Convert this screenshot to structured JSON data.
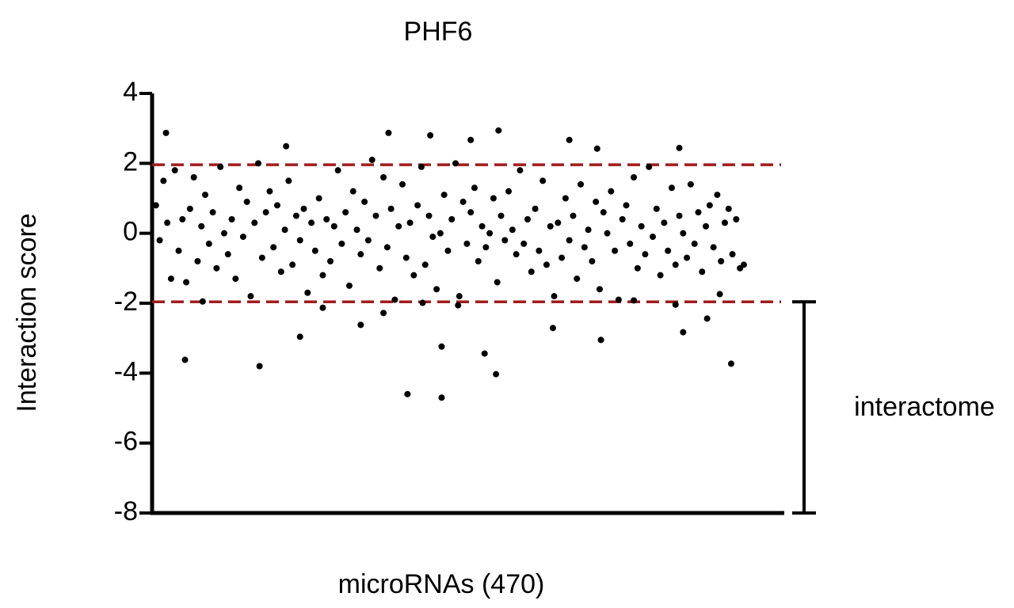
{
  "chart_data": {
    "type": "scatter",
    "title": "PHF6",
    "x_label": "microRNAs (470)",
    "y_label": "Interaction score",
    "color": "#000000",
    "threshold_color": "#a01c1c",
    "xlim": [
      0,
      500
    ],
    "ylim": [
      -8,
      4
    ],
    "yticks": [
      4,
      2,
      0,
      -2,
      -4,
      -6,
      -8
    ],
    "thresholds": [
      1.96,
      -1.96
    ],
    "bracket": {
      "label": "interactome",
      "range": [
        -1.96,
        -8
      ]
    },
    "x": [
      3,
      6,
      9,
      12,
      15,
      18,
      21,
      24,
      27,
      30,
      33,
      36,
      39,
      42,
      45,
      48,
      51,
      54,
      57,
      60,
      63,
      66,
      69,
      72,
      75,
      78,
      81,
      84,
      87,
      90,
      93,
      96,
      99,
      102,
      105,
      108,
      111,
      114,
      117,
      120,
      123,
      126,
      129,
      132,
      135,
      138,
      141,
      144,
      147,
      150,
      153,
      156,
      159,
      162,
      165,
      168,
      171,
      174,
      177,
      180,
      183,
      186,
      189,
      192,
      195,
      198,
      201,
      204,
      207,
      210,
      213,
      216,
      219,
      222,
      225,
      228,
      231,
      234,
      237,
      240,
      243,
      246,
      249,
      252,
      255,
      258,
      261,
      264,
      267,
      270,
      273,
      276,
      279,
      282,
      285,
      288,
      291,
      294,
      297,
      300,
      303,
      306,
      309,
      312,
      315,
      318,
      321,
      324,
      327,
      330,
      333,
      336,
      339,
      342,
      345,
      348,
      351,
      354,
      357,
      360,
      363,
      366,
      369,
      372,
      375,
      378,
      381,
      384,
      387,
      390,
      393,
      396,
      399,
      402,
      405,
      408,
      411,
      414,
      417,
      420,
      423,
      426,
      429,
      432,
      435,
      438,
      441,
      444,
      447,
      450,
      453,
      456,
      459,
      462,
      465,
      468,
      11,
      26,
      85,
      117,
      106,
      202,
      229,
      229,
      220,
      187,
      274,
      263,
      272,
      252,
      330,
      352,
      355,
      317,
      417,
      420,
      439,
      458,
      165,
      183,
      135,
      40,
      242,
      214,
      381,
      414,
      449
    ],
    "y": [
      0.8,
      -0.2,
      1.5,
      0.3,
      -1.3,
      1.8,
      -0.5,
      0.4,
      -1.4,
      0.7,
      1.6,
      -0.8,
      0.2,
      1.1,
      -0.3,
      0.6,
      -1.0,
      1.9,
      0.0,
      -0.6,
      0.4,
      -1.3,
      1.3,
      -0.1,
      0.9,
      -1.8,
      0.3,
      2.0,
      -0.7,
      0.6,
      1.2,
      -0.4,
      0.8,
      -1.1,
      0.1,
      1.5,
      -0.9,
      0.5,
      -0.2,
      0.7,
      -1.7,
      0.3,
      -0.5,
      1.0,
      -1.2,
      0.4,
      -0.8,
      0.2,
      1.8,
      -0.3,
      0.6,
      -1.5,
      1.2,
      0.1,
      -0.6,
      0.9,
      -0.2,
      2.1,
      0.5,
      -1.0,
      1.6,
      -0.4,
      0.7,
      -1.9,
      0.2,
      1.4,
      -0.7,
      0.3,
      -1.2,
      0.8,
      1.9,
      -0.9,
      0.5,
      -0.1,
      -1.6,
      0.0,
      1.1,
      -0.5,
      0.4,
      2.0,
      -1.8,
      0.9,
      -0.3,
      0.6,
      1.3,
      -0.8,
      0.2,
      -0.4,
      0.0,
      1.0,
      -1.4,
      0.5,
      -0.2,
      1.2,
      0.1,
      -0.6,
      1.8,
      -0.3,
      0.4,
      -1.1,
      0.7,
      -0.5,
      1.5,
      -0.9,
      0.2,
      -1.8,
      0.3,
      -0.7,
      1.0,
      -0.2,
      0.5,
      -1.3,
      1.4,
      -0.4,
      0.1,
      -0.8,
      0.9,
      -1.6,
      0.6,
      0.0,
      1.2,
      -0.5,
      -1.9,
      0.4,
      0.8,
      -0.3,
      1.6,
      -1.0,
      0.2,
      -0.6,
      1.9,
      -0.1,
      0.7,
      -1.2,
      0.3,
      -0.5,
      1.3,
      -0.9,
      0.5,
      0.0,
      -0.7,
      1.4,
      -0.3,
      0.6,
      -1.1,
      0.2,
      0.8,
      -0.4,
      1.1,
      -0.8,
      0.3,
      0.7,
      -0.6,
      0.4,
      -1.0,
      -0.9,
      2.87,
      -3.62,
      -3.8,
      -2.96,
      2.49,
      -4.6,
      -4.7,
      -3.24,
      2.8,
      2.87,
      2.94,
      -3.44,
      -4.03,
      2.67,
      2.67,
      2.42,
      -3.05,
      -2.71,
      2.44,
      -2.83,
      -2.44,
      -3.73,
      -2.62,
      -2.28,
      -2.13,
      -1.95,
      -2.06,
      -1.99,
      -1.92,
      -2.04,
      -1.74
    ]
  }
}
